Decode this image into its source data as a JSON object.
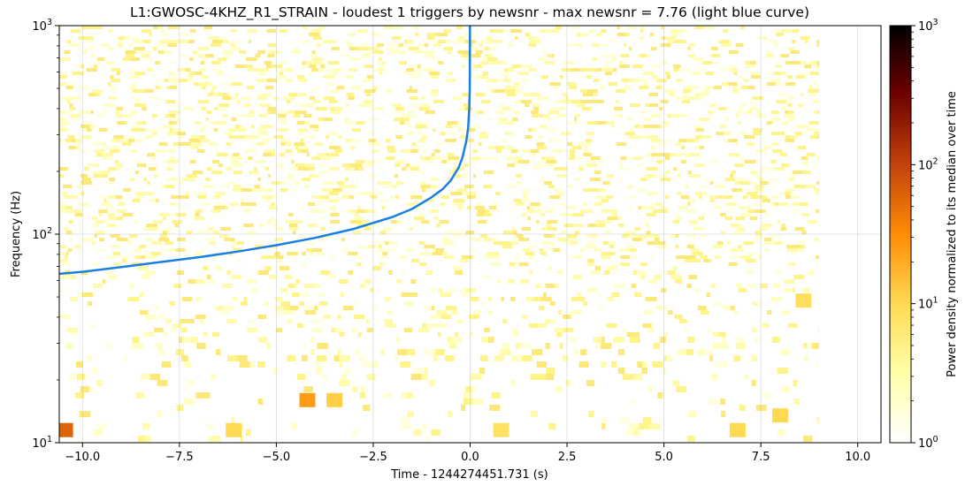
{
  "chart_data": {
    "type": "heatmap",
    "title": "L1:GWOSC-4KHZ_R1_STRAIN - loudest 1 triggers by newsnr - max newsnr = 7.76 (light blue curve)",
    "xlabel": "Time - 1244274451.731 (s)",
    "ylabel": "Frequency (Hz)",
    "xlim": [
      -10.6,
      10.6
    ],
    "ylim": [
      10,
      1000
    ],
    "y_scale": "log",
    "x_ticks": [
      -10.0,
      -7.5,
      -5.0,
      -2.5,
      0.0,
      2.5,
      5.0,
      7.5,
      10.0
    ],
    "x_tick_labels": [
      "−10.0",
      "−7.5",
      "−5.0",
      "−2.5",
      "0.0",
      "2.5",
      "5.0",
      "7.5",
      "10.0"
    ],
    "y_ticks": [
      10,
      100,
      1000
    ],
    "y_tick_base": "10",
    "y_tick_exps": [
      "1",
      "2",
      "3"
    ],
    "grid": true,
    "heatmap_x_range": [
      -10.6,
      9.0
    ],
    "colormap": "afmhot_r",
    "colorbar": {
      "label": "Power density normalized to its median over time",
      "scale": "log",
      "range": [
        1,
        1000
      ],
      "tick_base": "10",
      "tick_values": [
        1,
        10,
        100,
        1000
      ],
      "tick_exps": [
        "0",
        "1",
        "2",
        "3"
      ]
    },
    "hot_spots": [
      {
        "t": -10.45,
        "f": 11.5,
        "power": 60
      },
      {
        "t": -4.2,
        "f": 16,
        "power": 25
      },
      {
        "t": -3.5,
        "f": 16,
        "power": 12
      },
      {
        "t": -6.1,
        "f": 11.5,
        "power": 10
      },
      {
        "t": 0.8,
        "f": 11.5,
        "power": 8
      },
      {
        "t": 6.9,
        "f": 11.5,
        "power": 10
      },
      {
        "t": 8.0,
        "f": 13.5,
        "power": 10
      },
      {
        "t": 8.6,
        "f": 48,
        "power": 9
      }
    ],
    "series": [
      {
        "x": [
          -10.6,
          -10,
          -9,
          -8,
          -7,
          -6,
          -5,
          -4,
          -3,
          -2,
          -1.5,
          -1,
          -0.7,
          -0.5,
          -0.3,
          -0.2,
          -0.1,
          -0.05,
          -0.02,
          -0.01,
          -0.004
        ],
        "y": [
          64.5,
          66,
          69.5,
          73.5,
          77.5,
          82.5,
          88.5,
          96,
          106,
          121,
          132,
          150,
          165,
          181,
          208,
          232,
          278,
          325,
          410,
          500,
          1000
        ],
        "color": "#1a7fe3"
      }
    ]
  }
}
